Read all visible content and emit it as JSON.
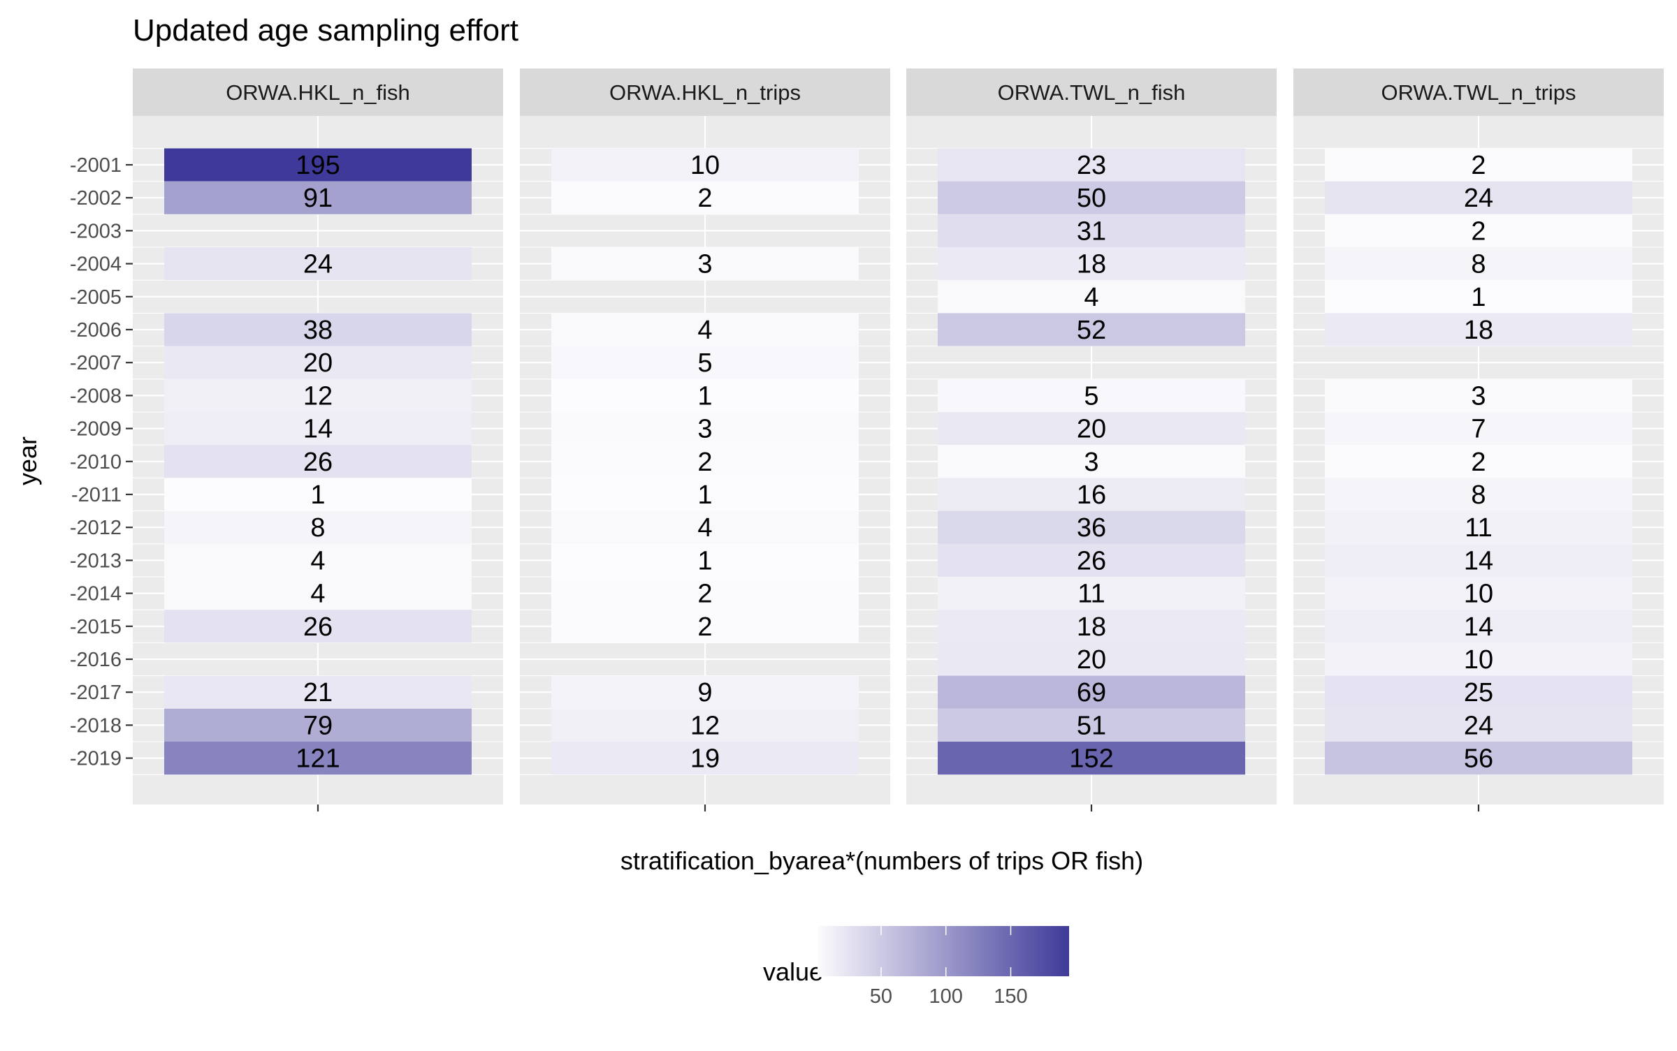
{
  "chart_data": {
    "type": "heatmap",
    "title": "Updated age sampling effort",
    "xlabel": "stratification_byarea*(numbers of trips OR fish)",
    "ylabel": "year",
    "x_tick_labels": [
      ""
    ],
    "years": [
      "-2001",
      "-2002",
      "-2003",
      "-2004",
      "-2005",
      "-2006",
      "-2007",
      "-2008",
      "-2009",
      "-2010",
      "-2011",
      "-2012",
      "-2013",
      "-2014",
      "-2015",
      "-2016",
      "-2017",
      "-2018",
      "-2019"
    ],
    "panels": [
      {
        "name": "ORWA.HKL_n_fish",
        "values": [
          195,
          91,
          null,
          24,
          null,
          38,
          20,
          12,
          14,
          26,
          1,
          8,
          4,
          4,
          26,
          null,
          21,
          79,
          121
        ]
      },
      {
        "name": "ORWA.HKL_n_trips",
        "values": [
          10,
          2,
          null,
          3,
          null,
          4,
          5,
          1,
          3,
          2,
          1,
          4,
          1,
          2,
          2,
          null,
          9,
          12,
          19
        ]
      },
      {
        "name": "ORWA.TWL_n_fish",
        "values": [
          23,
          50,
          31,
          18,
          4,
          52,
          null,
          5,
          20,
          3,
          16,
          36,
          26,
          11,
          18,
          20,
          69,
          51,
          152
        ]
      },
      {
        "name": "ORWA.TWL_n_trips",
        "values": [
          2,
          24,
          2,
          8,
          1,
          18,
          null,
          3,
          7,
          2,
          8,
          11,
          14,
          10,
          14,
          10,
          25,
          24,
          56
        ]
      }
    ],
    "legend": {
      "title": "value",
      "ticks": [
        50,
        100,
        150
      ],
      "range": [
        1,
        195
      ],
      "low_color": "#FCFBFD",
      "high_color": "#3F3A99",
      "placement": "bottom"
    },
    "colors": {
      "panel_background": "#EBEBEB",
      "strip_background": "#D9D9D9",
      "grid": "#FFFFFF",
      "axis_text": "#4D4D4D"
    }
  }
}
